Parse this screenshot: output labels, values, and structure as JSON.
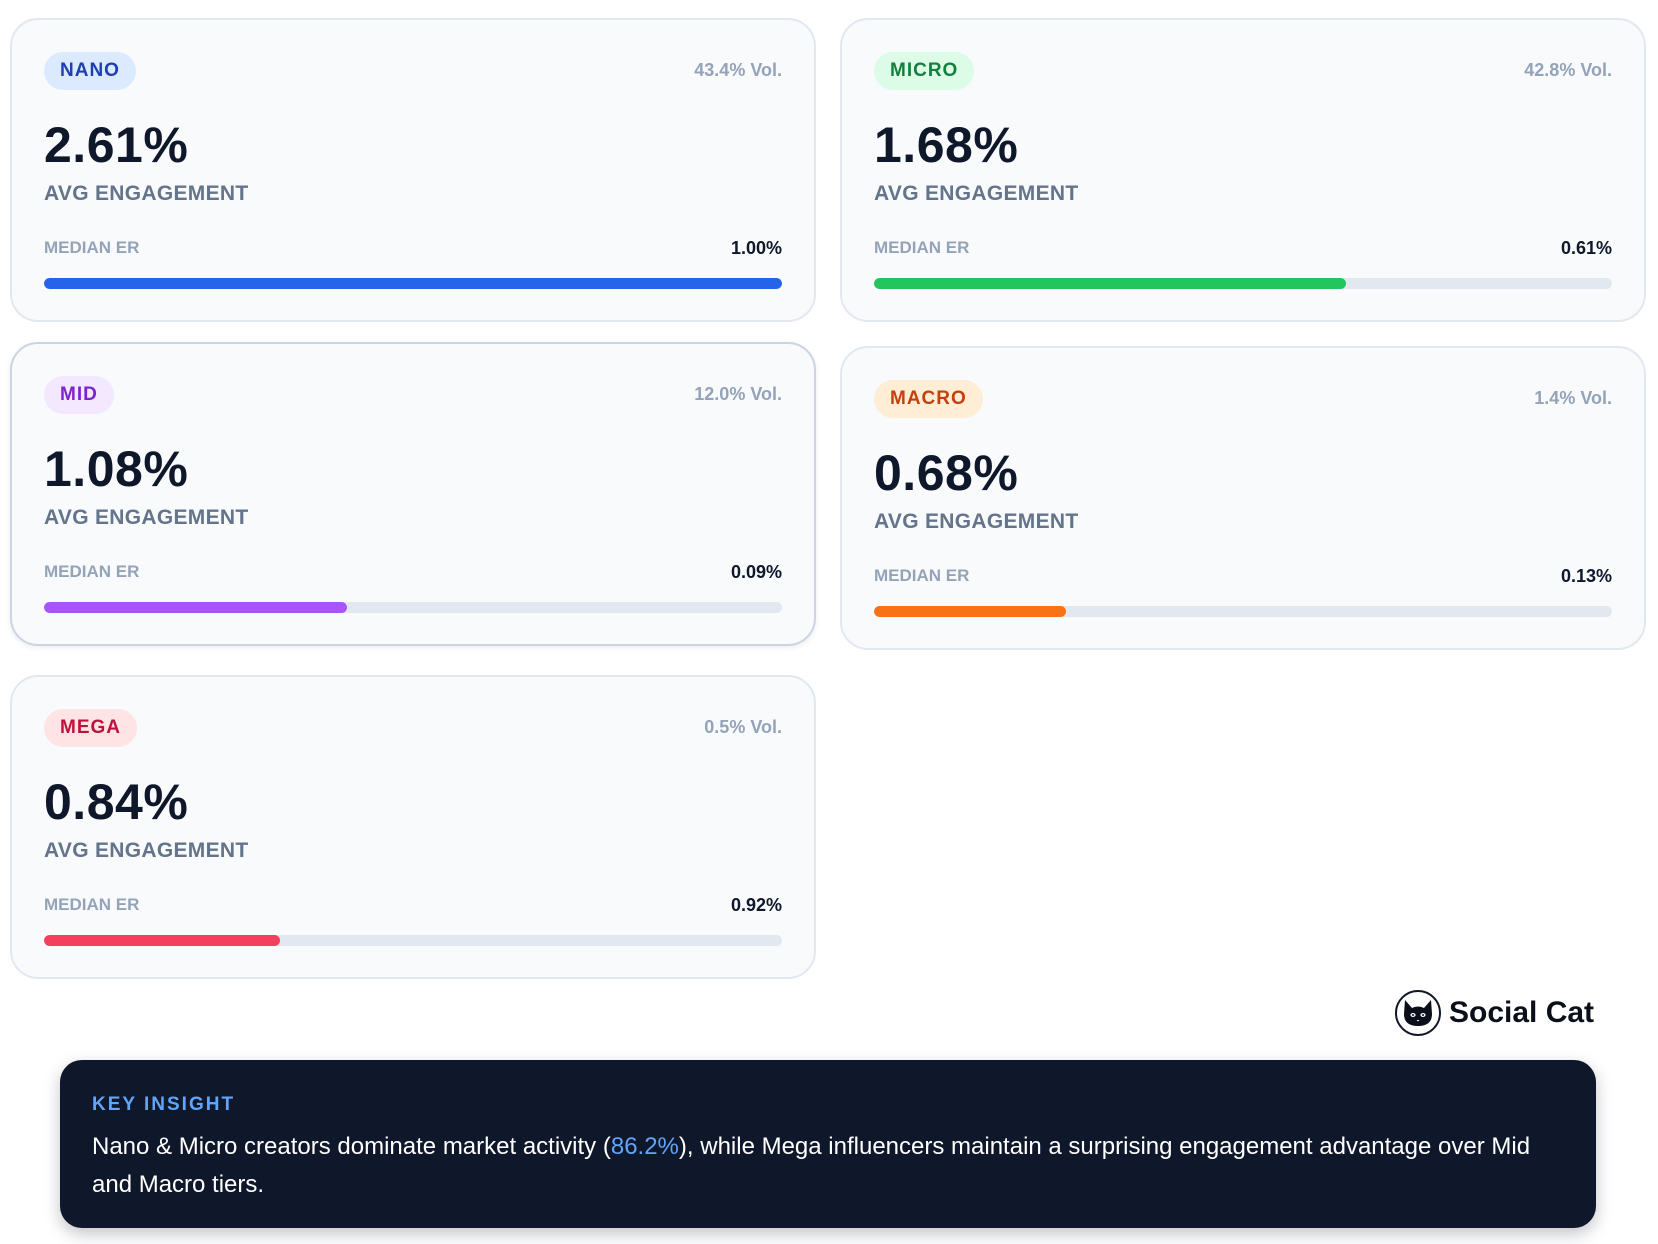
{
  "cards": [
    {
      "tier": "NANO",
      "volume": "43.4% Vol.",
      "avg": "2.61%",
      "avg_label": "AVG ENGAGEMENT",
      "median_label": "MEDIAN ER",
      "median": "1.00%",
      "bar_fill": 1.0,
      "badge_bg": "#dbeafe",
      "badge_fg": "#1e40af",
      "bar_color": "#2563eb"
    },
    {
      "tier": "MICRO",
      "volume": "42.8% Vol.",
      "avg": "1.68%",
      "avg_label": "AVG ENGAGEMENT",
      "median_label": "MEDIAN ER",
      "median": "0.61%",
      "bar_fill": 0.64,
      "badge_bg": "#dcfce7",
      "badge_fg": "#15803d",
      "bar_color": "#22c55e"
    },
    {
      "tier": "MID",
      "volume": "12.0% Vol.",
      "avg": "1.08%",
      "avg_label": "AVG ENGAGEMENT",
      "median_label": "MEDIAN ER",
      "median": "0.09%",
      "bar_fill": 0.41,
      "badge_bg": "#f3e8ff",
      "badge_fg": "#7e22ce",
      "bar_color": "#a855f7"
    },
    {
      "tier": "MACRO",
      "volume": "1.4% Vol.",
      "avg": "0.68%",
      "avg_label": "AVG ENGAGEMENT",
      "median_label": "MEDIAN ER",
      "median": "0.13%",
      "bar_fill": 0.26,
      "badge_bg": "#ffedd5",
      "badge_fg": "#c2410c",
      "bar_color": "#f97316"
    },
    {
      "tier": "MEGA",
      "volume": "0.5% Vol.",
      "avg": "0.84%",
      "avg_label": "AVG ENGAGEMENT",
      "median_label": "MEDIAN ER",
      "median": "0.92%",
      "bar_fill": 0.32,
      "badge_bg": "#ffe4e6",
      "badge_fg": "#be123c",
      "bar_color": "#f43f5e"
    }
  ],
  "logo": {
    "text": "Social Cat",
    "icon": "cat-icon"
  },
  "insight": {
    "label": "KEY INSIGHT",
    "text_before": "Nano & Micro creators dominate market activity (",
    "highlight": "86.2%",
    "text_after": "), while Mega influencers maintain a surprising engagement advantage over Mid and Macro tiers.",
    "highlight_color": "#60a5fa"
  }
}
